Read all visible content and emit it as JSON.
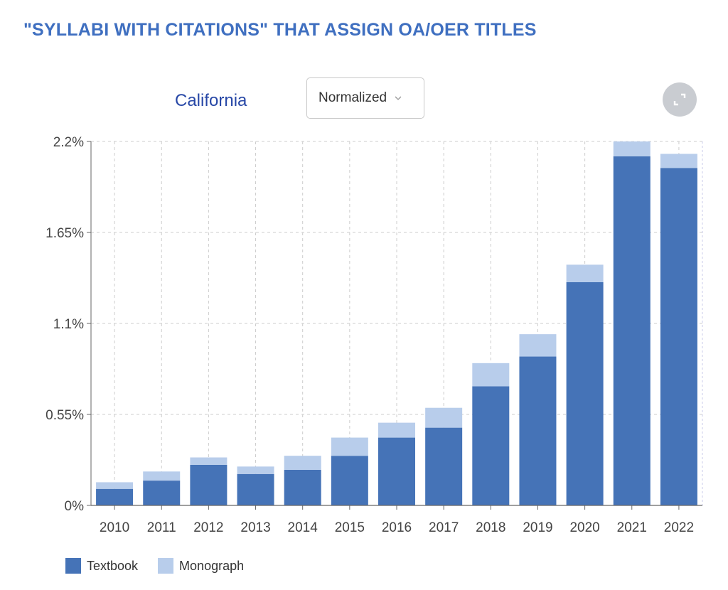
{
  "page": {
    "title": "\"SYLLABI WITH CITATIONS\" THAT ASSIGN OA/OER TITLES"
  },
  "controls": {
    "region": "California",
    "mode_value": "Normalized",
    "chevron_icon": "chevron-down-icon",
    "expand_icon": "expand-icon"
  },
  "colors": {
    "textbook": "#4573b7",
    "monograph": "#b8cdeb",
    "title": "#3f6fc0",
    "region": "#2747a6",
    "grid": "#cccccc"
  },
  "chart_data": {
    "type": "bar",
    "stacked": true,
    "categories": [
      "2010",
      "2011",
      "2012",
      "2013",
      "2014",
      "2015",
      "2016",
      "2017",
      "2018",
      "2019",
      "2020",
      "2021",
      "2022"
    ],
    "series": [
      {
        "name": "Textbook",
        "values": [
          0.1,
          0.15,
          0.245,
          0.19,
          0.215,
          0.3,
          0.41,
          0.47,
          0.72,
          0.9,
          1.35,
          2.11,
          2.04
        ]
      },
      {
        "name": "Monograph",
        "values": [
          0.04,
          0.055,
          0.045,
          0.045,
          0.085,
          0.11,
          0.09,
          0.12,
          0.14,
          0.135,
          0.105,
          0.09,
          0.085
        ]
      }
    ],
    "yticks": [
      {
        "value": 0,
        "label": "0%"
      },
      {
        "value": 0.55,
        "label": "0.55%"
      },
      {
        "value": 1.1,
        "label": "1.1%"
      },
      {
        "value": 1.65,
        "label": "1.65%"
      },
      {
        "value": 2.2,
        "label": "2.2%"
      }
    ],
    "ylim": [
      0,
      2.2
    ],
    "grid": true,
    "legend_position": "bottom-left",
    "xlabel": "",
    "ylabel": ""
  }
}
